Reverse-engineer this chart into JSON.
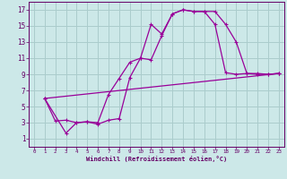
{
  "xlabel": "Windchill (Refroidissement éolien,°C)",
  "background_color": "#cce8e8",
  "grid_color": "#aacccc",
  "line_color": "#990099",
  "xlim": [
    -0.5,
    23.5
  ],
  "ylim": [
    0,
    18
  ],
  "xticks": [
    0,
    1,
    2,
    3,
    4,
    5,
    6,
    7,
    8,
    9,
    10,
    11,
    12,
    13,
    14,
    15,
    16,
    17,
    18,
    19,
    20,
    21,
    22,
    23
  ],
  "yticks": [
    1,
    3,
    5,
    7,
    9,
    11,
    13,
    15,
    17
  ],
  "curve1_x": [
    1,
    2,
    3,
    4,
    5,
    6,
    7,
    8,
    9,
    10,
    11,
    12,
    13,
    14,
    15,
    16,
    17,
    18,
    19,
    20,
    21,
    22,
    23
  ],
  "curve1_y": [
    6.0,
    3.2,
    3.3,
    3.0,
    3.1,
    3.0,
    6.5,
    8.5,
    10.5,
    11.0,
    15.2,
    14.0,
    16.5,
    17.0,
    16.8,
    16.8,
    16.8,
    15.2,
    13.0,
    9.1,
    9.1,
    9.0,
    9.1
  ],
  "curve2_x": [
    1,
    3,
    4,
    5,
    6,
    7,
    8,
    9,
    10,
    11,
    12,
    13,
    14,
    15,
    16,
    17,
    18,
    19,
    20,
    21,
    22,
    23
  ],
  "curve2_y": [
    6.0,
    1.7,
    3.0,
    3.1,
    2.8,
    3.3,
    3.5,
    8.6,
    11.0,
    10.8,
    13.8,
    16.5,
    17.0,
    16.8,
    16.8,
    15.2,
    9.2,
    9.0,
    9.1,
    9.0,
    9.0,
    9.1
  ],
  "line_x": [
    1,
    23
  ],
  "line_y": [
    6.0,
    9.1
  ],
  "marker": "+"
}
